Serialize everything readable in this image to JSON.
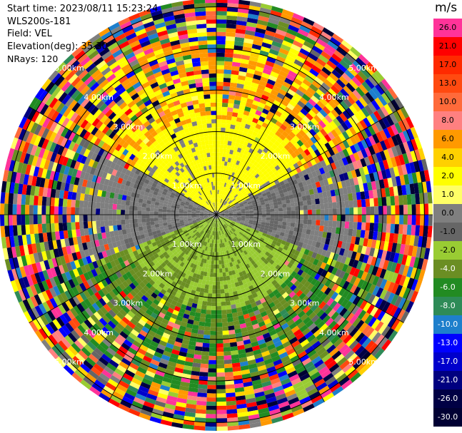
{
  "header": {
    "start_time": "Start time: 2023/08/11 15:23:24",
    "instrument": "WLS200s-181",
    "field": "Field: VEL",
    "elevation": "Elevation(deg): 35.30",
    "nrays": "NRays: 120"
  },
  "chart_data": {
    "type": "polar",
    "field": "VEL",
    "nrays": 120,
    "max_range_km": 5.2,
    "range_rings": [
      {
        "km": 1.0,
        "label": "1.00km"
      },
      {
        "km": 2.0,
        "label": "2.00km"
      },
      {
        "km": 3.0,
        "label": "3.00km"
      },
      {
        "km": 4.0,
        "label": "4.00km"
      },
      {
        "km": 5.0,
        "label": "5.00km"
      }
    ],
    "spokes_deg": [
      0,
      30,
      60,
      90,
      120,
      150,
      180,
      210,
      240,
      270,
      300,
      330
    ],
    "dominant_pattern": [
      {
        "sector": "north (approx 300-60 deg az), <2.5km",
        "velocity_ms": 2.0
      },
      {
        "sector": "west/east band, <2km",
        "velocity_ms": 0.0
      },
      {
        "sector": "south-east, <2km",
        "velocity_ms": -2.0
      },
      {
        "sector": "south, 1-4km",
        "velocity_ms": -4.0
      },
      {
        "sector": "north-west, >2.5km",
        "velocity_ms": 6.0
      },
      {
        "sector": "outer ranges",
        "velocity_ms": "noise"
      }
    ]
  },
  "colorbar": {
    "unit": "m/s",
    "ticks": [
      "26.0",
      "21.0",
      "17.0",
      "13.0",
      "10.0",
      "8.0",
      "6.0",
      "4.0",
      "2.0",
      "1.0",
      "0.0",
      "-1.0",
      "-2.0",
      "-4.0",
      "-6.0",
      "-8.0",
      "-10.0",
      "-13.0",
      "-17.0",
      "-21.0",
      "-26.0",
      "-30.0"
    ],
    "colors": [
      "#ff3399",
      "#ff0000",
      "#ff2a00",
      "#ff4a10",
      "#ff6a3a",
      "#ff8080",
      "#ff9900",
      "#ffd000",
      "#ffff00",
      "#ffff66",
      "#7f7f7f",
      "#666666",
      "#99cc33",
      "#6b8e23",
      "#228b22",
      "#2e8b57",
      "#1e7fcc",
      "#0000ff",
      "#0000cc",
      "#000080",
      "#000044",
      "#000033"
    ]
  }
}
